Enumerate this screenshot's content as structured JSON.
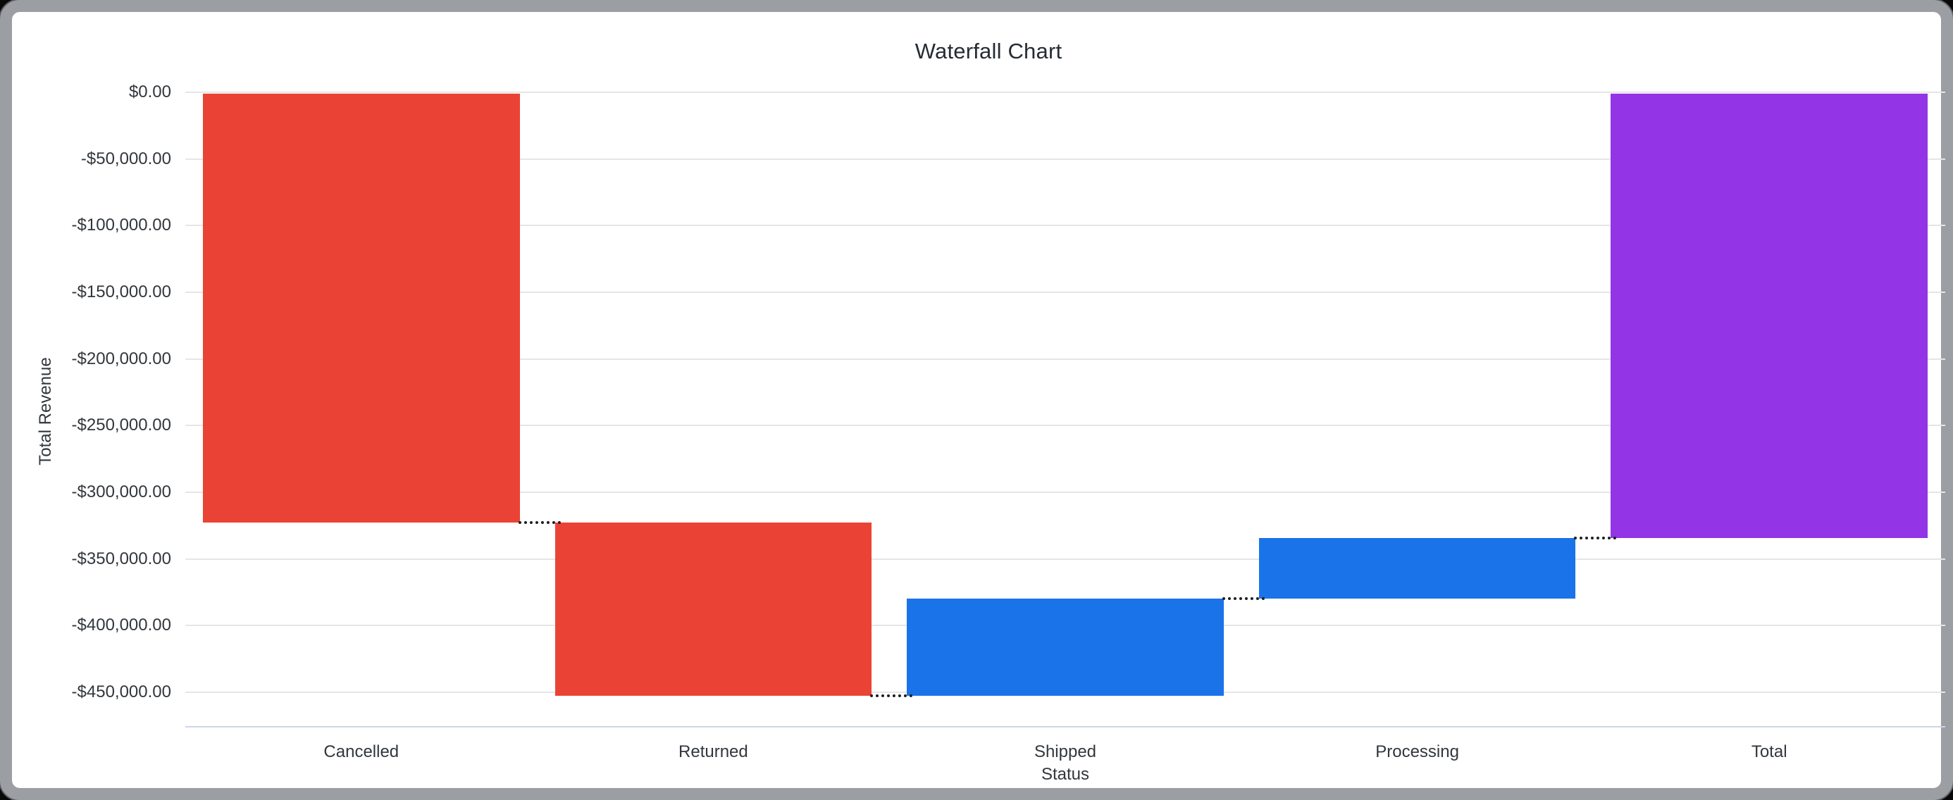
{
  "chart_data": {
    "type": "bar",
    "subtype": "waterfall",
    "title": "Waterfall Chart",
    "xlabel": "Status",
    "ylabel": "Total Revenue",
    "categories": [
      "Cancelled",
      "Returned",
      "Shipped",
      "Processing",
      "Total"
    ],
    "bars": [
      {
        "label": "Cancelled",
        "from": 0,
        "to": -322900,
        "change": -322900,
        "role": "negative"
      },
      {
        "label": "Returned",
        "from": -322900,
        "to": -452700,
        "change": -129800,
        "role": "negative"
      },
      {
        "label": "Shipped",
        "from": -452700,
        "to": -379900,
        "change": 72800,
        "role": "positive"
      },
      {
        "label": "Processing",
        "from": -379900,
        "to": -334500,
        "change": 45400,
        "role": "positive"
      },
      {
        "label": "Total",
        "from": 0,
        "to": -334500,
        "change": -334500,
        "role": "total"
      }
    ],
    "y_ticks": [
      {
        "label": "$0.00",
        "value": 0
      },
      {
        "label": "-$50,000.00",
        "value": -50000
      },
      {
        "label": "-$100,000.00",
        "value": -100000
      },
      {
        "label": "-$150,000.00",
        "value": -150000
      },
      {
        "label": "-$200,000.00",
        "value": -200000
      },
      {
        "label": "-$250,000.00",
        "value": -250000
      },
      {
        "label": "-$300,000.00",
        "value": -300000
      },
      {
        "label": "-$350,000.00",
        "value": -350000
      },
      {
        "label": "-$400,000.00",
        "value": -400000
      },
      {
        "label": "-$450,000.00",
        "value": -450000
      }
    ],
    "ylim": [
      -476000,
      0
    ],
    "grid": true,
    "legend": "none",
    "colors": {
      "negative": "#EA4335",
      "positive": "#1A73E8",
      "total": "#9334E6",
      "gridline": "#E6E6E6",
      "axis_baseline": "#CCD5E8",
      "connector": "#1F1F1F",
      "title_text": "#262C33",
      "axis_text": "#32373C"
    }
  }
}
